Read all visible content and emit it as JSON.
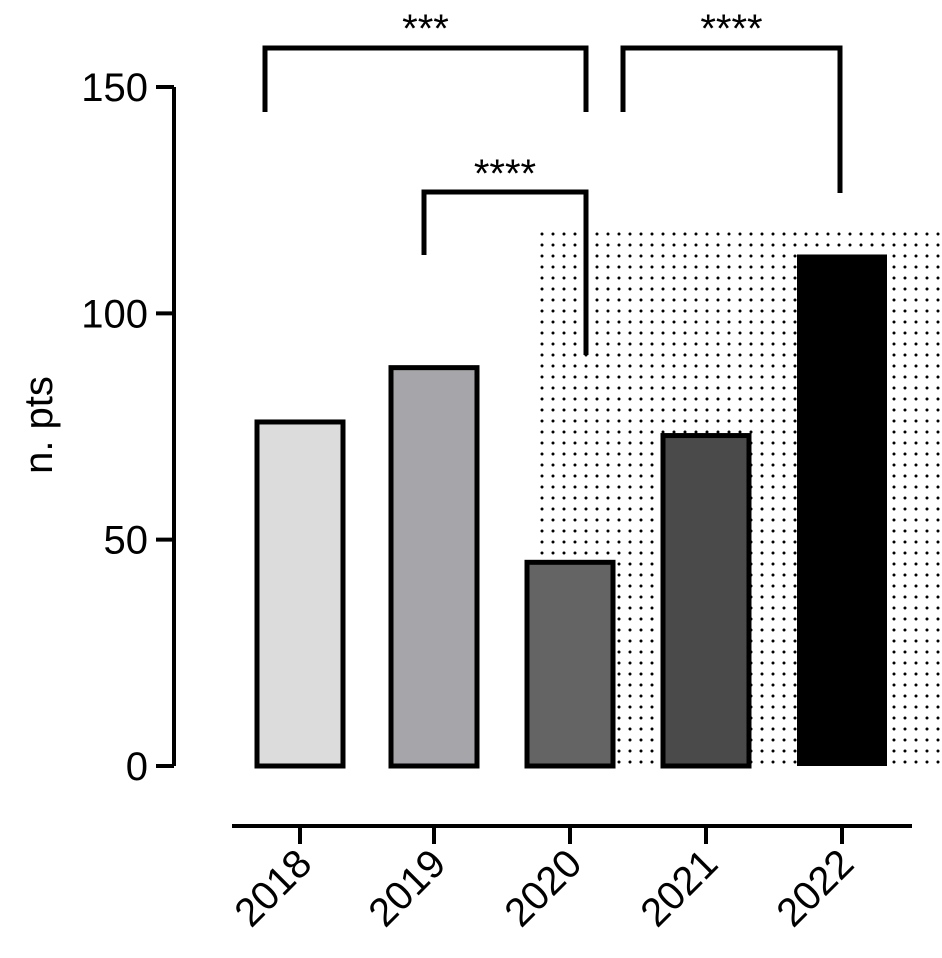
{
  "chart_data": {
    "type": "bar",
    "title": "",
    "xlabel": "",
    "ylabel": "n. pts",
    "ylim": [
      0,
      150
    ],
    "yticks": [
      0,
      50,
      100,
      150
    ],
    "categories": [
      "2018",
      "2019",
      "2020",
      "2021",
      "2022"
    ],
    "values": [
      76,
      88,
      45,
      73,
      113
    ],
    "bar_colors": [
      "#dcdcdc",
      "#a5a5aa",
      "#646464",
      "#4a4a4a",
      "#000000"
    ],
    "shaded_region": {
      "from_category": "2020",
      "to_category": "2022",
      "pattern": "dotted"
    },
    "significance": [
      {
        "from": "2018",
        "to": "2020",
        "label": "***"
      },
      {
        "from": "2019",
        "to": "2020",
        "label": "****"
      },
      {
        "from": "2020",
        "to": "2022",
        "label": "****"
      }
    ]
  }
}
